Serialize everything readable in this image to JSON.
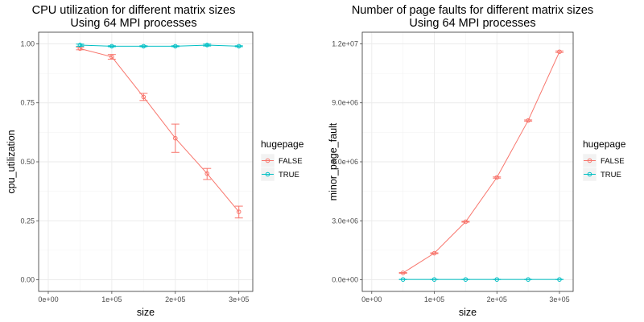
{
  "chart_data": [
    {
      "type": "line",
      "title": "CPU utilization for different matrix sizes",
      "subtitle": "Using 64 MPI processes",
      "xlabel": "size",
      "ylabel": "cpu_utilization",
      "xlim": [
        0,
        300000
      ],
      "ylim": [
        0,
        1.0
      ],
      "x_ticks": [
        0,
        100000,
        200000,
        300000
      ],
      "x_tick_labels": [
        "0e+00",
        "1e+05",
        "2e+05",
        "3e+05"
      ],
      "y_ticks": [
        0,
        0.25,
        0.5,
        0.75,
        1.0
      ],
      "y_tick_labels": [
        "0.00",
        "0.25",
        "0.50",
        "0.75",
        "1.00"
      ],
      "grid": true,
      "legend": {
        "title": "hugepage",
        "position": "right"
      },
      "series": [
        {
          "name": "FALSE",
          "color": "#F8766D",
          "x": [
            50000,
            100000,
            150000,
            200000,
            250000,
            300000
          ],
          "y": [
            0.98,
            0.945,
            0.775,
            0.6,
            0.45,
            0.288
          ],
          "err_low": [
            0.975,
            0.935,
            0.76,
            0.54,
            0.425,
            0.262
          ],
          "err_high": [
            0.985,
            0.955,
            0.79,
            0.66,
            0.472,
            0.312
          ]
        },
        {
          "name": "TRUE",
          "color": "#00BFC4",
          "x": [
            50000,
            100000,
            150000,
            200000,
            250000,
            300000
          ],
          "y": [
            0.995,
            0.99,
            0.99,
            0.99,
            0.995,
            0.99
          ],
          "err_low": [
            0.99,
            0.988,
            0.988,
            0.988,
            0.991,
            0.988
          ],
          "err_high": [
            0.999,
            0.992,
            0.992,
            0.992,
            0.999,
            0.992
          ]
        }
      ]
    },
    {
      "type": "line",
      "title": "Number of page faults for different matrix sizes",
      "subtitle": "Using 64 MPI processes",
      "xlabel": "size",
      "ylabel": "minor_page_fault",
      "xlim": [
        0,
        300000
      ],
      "ylim": [
        0,
        12000000
      ],
      "x_ticks": [
        0,
        100000,
        200000,
        300000
      ],
      "x_tick_labels": [
        "0e+00",
        "1e+05",
        "2e+05",
        "3e+05"
      ],
      "y_ticks": [
        0,
        3000000,
        6000000,
        9000000,
        12000000
      ],
      "y_tick_labels": [
        "0.0e+00",
        "3.0e+06",
        "6.0e+06",
        "9.0e+06",
        "1.2e+07"
      ],
      "grid": true,
      "legend": {
        "title": "hugepage",
        "position": "right"
      },
      "series": [
        {
          "name": "FALSE",
          "color": "#F8766D",
          "x": [
            50000,
            100000,
            150000,
            200000,
            250000,
            300000
          ],
          "y": [
            350000,
            1350000,
            2950000,
            5200000,
            8100000,
            11600000
          ],
          "err_low": [
            330000,
            1330000,
            2930000,
            5170000,
            8070000,
            11560000
          ],
          "err_high": [
            370000,
            1370000,
            2970000,
            5230000,
            8130000,
            11640000
          ]
        },
        {
          "name": "TRUE",
          "color": "#00BFC4",
          "x": [
            50000,
            100000,
            150000,
            200000,
            250000,
            300000
          ],
          "y": [
            15000,
            15000,
            15000,
            15000,
            15000,
            15000
          ],
          "err_low": [
            10000,
            10000,
            10000,
            10000,
            10000,
            10000
          ],
          "err_high": [
            20000,
            20000,
            20000,
            20000,
            20000,
            20000
          ]
        }
      ]
    }
  ]
}
